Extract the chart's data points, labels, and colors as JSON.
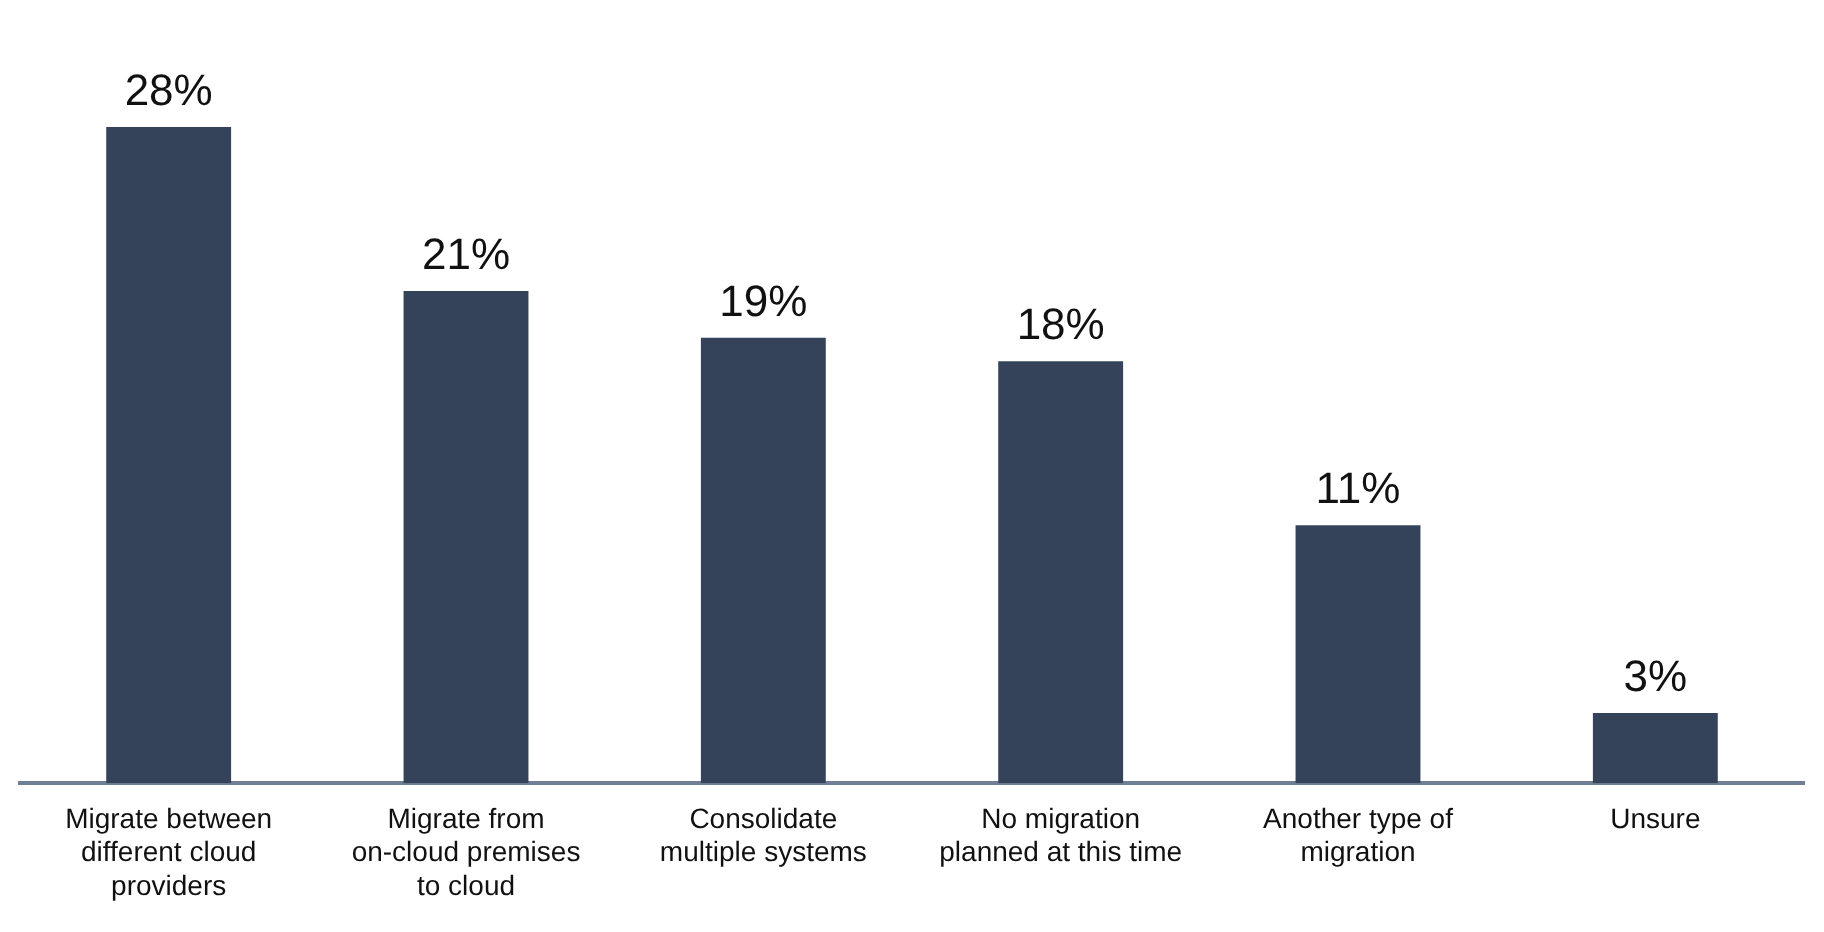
{
  "chart_data": {
    "type": "bar",
    "categories": [
      "Migrate between different cloud providers",
      "Migrate from on-cloud premises to cloud",
      "Consolidate multiple systems",
      "No migration planned at this time",
      "Another type of migration",
      "Unsure"
    ],
    "values": [
      28,
      21,
      19,
      18,
      11,
      3
    ],
    "color": "#35435a",
    "value_labels": [
      "28%",
      "21%",
      "19%",
      "18%",
      "11%",
      "3%"
    ],
    "tick_labels": "x",
    "grid": false,
    "legend": false
  }
}
